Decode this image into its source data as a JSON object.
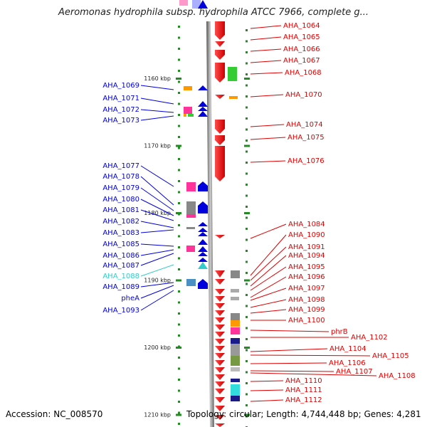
{
  "title": "Aeromonas hydrophila subsp. hydrophila ATCC 7966, complete g...",
  "footer": {
    "accession": "Accession: NC_008570",
    "topology": "Topology: circular; Length: 4,744,448 bp; Genes: 4,281"
  },
  "colors": {
    "forward": "#0000dd",
    "reverse": "#dd0000",
    "highlight": "#33cccc",
    "backbone": "#888888",
    "tick": "#228b22"
  },
  "ruler": [
    {
      "label": "1160 kbp",
      "y": 1160
    },
    {
      "label": "1170 kbp",
      "y": 1170
    },
    {
      "label": "1180 kbp",
      "y": 1180
    },
    {
      "label": "1190 kbp",
      "y": 1190
    },
    {
      "label": "1200 kbp",
      "y": 1200
    },
    {
      "label": "1210 kbp",
      "y": 1210
    }
  ],
  "left_labels": [
    {
      "text": "AHA_1069"
    },
    {
      "text": "AHA_1071"
    },
    {
      "text": "AHA_1072"
    },
    {
      "text": "AHA_1073"
    },
    {
      "text": "AHA_1077"
    },
    {
      "text": "AHA_1078"
    },
    {
      "text": "AHA_1079"
    },
    {
      "text": "AHA_1080"
    },
    {
      "text": "AHA_1081"
    },
    {
      "text": "AHA_1082"
    },
    {
      "text": "AHA_1083"
    },
    {
      "text": "AHA_1085"
    },
    {
      "text": "AHA_1086"
    },
    {
      "text": "AHA_1087"
    },
    {
      "text": "AHA_1088",
      "highlight": true
    },
    {
      "text": "AHA_1089"
    },
    {
      "text": "pheA"
    },
    {
      "text": "AHA_1093"
    }
  ],
  "right_labels": [
    {
      "text": "AHA_1064"
    },
    {
      "text": "AHA_1065"
    },
    {
      "text": "AHA_1066"
    },
    {
      "text": "AHA_1067"
    },
    {
      "text": "AHA_1068"
    },
    {
      "text": "AHA_1070"
    },
    {
      "text": "AHA_1074"
    },
    {
      "text": "AHA_1075"
    },
    {
      "text": "AHA_1076"
    },
    {
      "text": "AHA_1084"
    },
    {
      "text": "AHA_1090"
    },
    {
      "text": "AHA_1091"
    },
    {
      "text": "AHA_1094"
    },
    {
      "text": "AHA_1095"
    },
    {
      "text": "AHA_1096"
    },
    {
      "text": "AHA_1097"
    },
    {
      "text": "AHA_1098"
    },
    {
      "text": "AHA_1099"
    },
    {
      "text": "AHA_1100"
    },
    {
      "text": "phrB"
    },
    {
      "text": "AHA_1102"
    },
    {
      "text": "AHA_1104"
    },
    {
      "text": "AHA_1105"
    },
    {
      "text": "AHA_1106"
    },
    {
      "text": "AHA_1107"
    },
    {
      "text": "AHA_1108"
    },
    {
      "text": "AHA_1110"
    },
    {
      "text": "AHA_1111"
    },
    {
      "text": "AHA_1112"
    }
  ]
}
